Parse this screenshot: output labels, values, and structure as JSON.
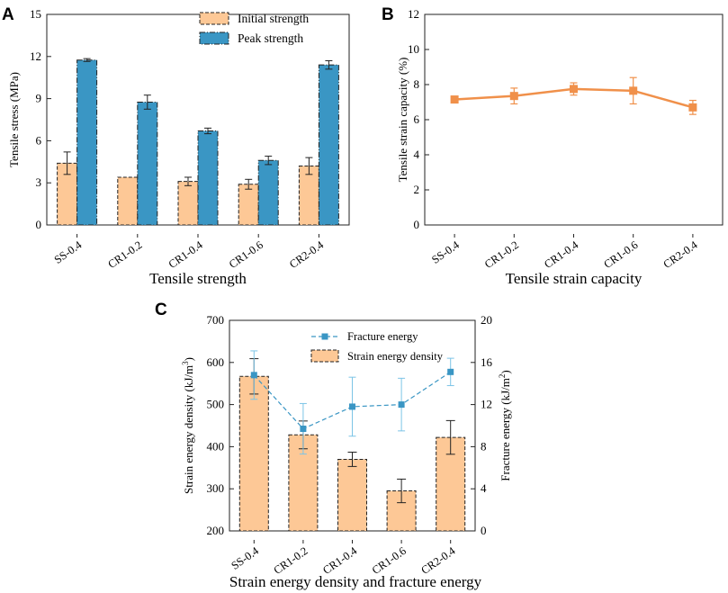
{
  "panels": {
    "a": {
      "letter": "A"
    },
    "b": {
      "letter": "B"
    },
    "c": {
      "letter": "C"
    }
  },
  "chart_data": [
    {
      "id": "a",
      "type": "bar",
      "title": "Tensile strength",
      "xlabel": "",
      "ylabel": "Tensile stress (MPa)",
      "ylim": [
        0,
        15
      ],
      "yticks": [
        0,
        3,
        6,
        9,
        12,
        15
      ],
      "categories": [
        "SS-0.4",
        "CR1-0.2",
        "CR1-0.4",
        "CR1-0.6",
        "CR2-0.4"
      ],
      "legend_position": "top-right",
      "series": [
        {
          "name": "Initial strength",
          "color": "#fdc896",
          "values": [
            4.4,
            3.4,
            3.1,
            2.9,
            4.2
          ],
          "errors": [
            0.8,
            0.0,
            0.3,
            0.35,
            0.6
          ]
        },
        {
          "name": "Peak strength",
          "color": "#3a96c4",
          "values": [
            11.75,
            8.75,
            6.7,
            4.6,
            11.4
          ],
          "errors": [
            0.1,
            0.5,
            0.2,
            0.3,
            0.3
          ]
        }
      ]
    },
    {
      "id": "b",
      "type": "line",
      "title": "Tensile strain capacity",
      "xlabel": "",
      "ylabel": "Tensile strain capacity (%)",
      "ylim": [
        0,
        12
      ],
      "yticks": [
        0,
        2,
        4,
        6,
        8,
        10,
        12
      ],
      "categories": [
        "SS-0.4",
        "CR1-0.2",
        "CR1-0.4",
        "CR1-0.6",
        "CR2-0.4"
      ],
      "series": [
        {
          "name": "Tensile strain capacity",
          "color": "#f0904a",
          "values": [
            7.15,
            7.35,
            7.75,
            7.65,
            6.7
          ],
          "errors": [
            0.15,
            0.45,
            0.35,
            0.75,
            0.4
          ]
        }
      ]
    },
    {
      "id": "c",
      "type": "bar",
      "title": "Strain energy density and fracture energy",
      "xlabel": "",
      "ylabel": "Strain energy density (kJ/m",
      "ylabel_sup": "3",
      "ylabel2": "Fracture energy (kJ/m",
      "ylabel2_sup": "2",
      "ylim": [
        200,
        700
      ],
      "yticks": [
        200,
        300,
        400,
        500,
        600,
        700
      ],
      "y2lim": [
        0,
        20
      ],
      "y2ticks": [
        0,
        4,
        8,
        12,
        16,
        20
      ],
      "categories": [
        "SS-0.4",
        "CR1-0.2",
        "CR1-0.4",
        "CR1-0.6",
        "CR2-0.4"
      ],
      "legend_position": "top-right",
      "series": [
        {
          "name": "Strain energy density",
          "type": "bar",
          "axis": "left",
          "color": "#fdc896",
          "values": [
            567,
            428,
            370,
            295,
            422
          ],
          "errors": [
            42,
            33,
            17,
            28,
            40
          ]
        },
        {
          "name": "Fracture energy",
          "type": "line",
          "axis": "right",
          "color": "#3a96c4",
          "values": [
            14.8,
            9.7,
            11.8,
            12.0,
            15.1
          ],
          "errors": [
            2.3,
            2.4,
            2.8,
            2.5,
            1.3
          ]
        }
      ]
    }
  ]
}
